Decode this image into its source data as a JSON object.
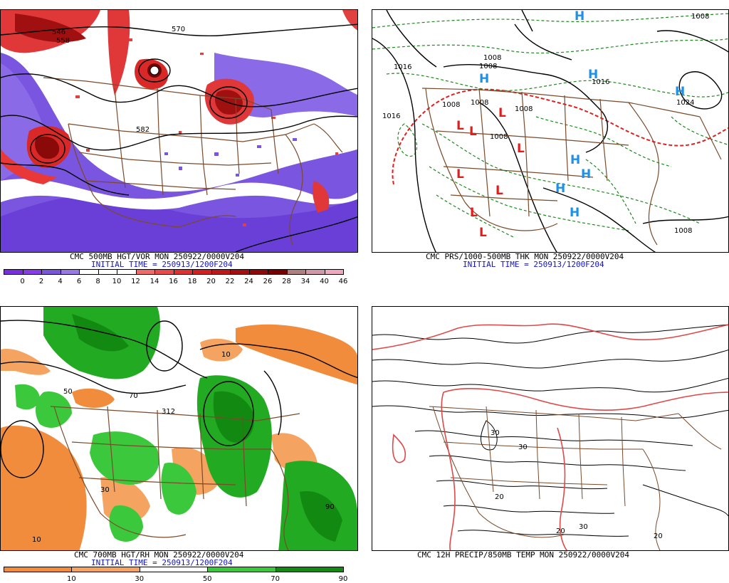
{
  "panels": {
    "tl": {
      "title": "CMC 500MB HGT/VOR MON 250922/0000V204",
      "init": "INITIAL TIME = 250913/1200F204",
      "contour_labels": [
        "546",
        "558",
        "570",
        "582"
      ],
      "scale_labels": [
        "0",
        "2",
        "4",
        "6",
        "8",
        "10",
        "12",
        "14",
        "16",
        "18",
        "20",
        "22",
        "24",
        "26",
        "28",
        "34",
        "40",
        "46"
      ],
      "scale_colors": [
        "#7a2ee0",
        "#8a3ae8",
        "#7b55dc",
        "#9a78e6",
        "#ffffff",
        "#ffffff",
        "#ffffff",
        "#f06a6a",
        "#ea4a4a",
        "#e03030",
        "#d42020",
        "#c01818",
        "#a81010",
        "#900808",
        "#7a0000",
        "#b08080",
        "#d098a8",
        "#f0a8c0"
      ]
    },
    "tr": {
      "title": "CMC PRS/1000-500MB THK MON 250922/0000V204",
      "init": "INITIAL TIME = 250913/1200F204",
      "high_label": "H",
      "low_label": "L",
      "contour_labels": [
        "1016",
        "1016",
        "1008",
        "1008",
        "1008",
        "1008",
        "1008",
        "1008",
        "1016",
        "1024",
        "1008",
        "1008"
      ]
    },
    "bl": {
      "title": "CMC 700MB HGT/RH MON 250922/0000V204",
      "init": "INITIAL TIME = 250913/1200F204",
      "contour_labels": [
        "10",
        "30",
        "50",
        "70",
        "90",
        "312",
        "10"
      ],
      "scale_labels": [
        "10",
        "30",
        "50",
        "70",
        "90"
      ],
      "scale_colors": [
        "#f08c3c",
        "#f4a460",
        "#ffffff",
        "#3cc83c",
        "#128a12"
      ]
    },
    "br": {
      "title": "CMC 12H PRECIP/850MB TEMP MON 250922/0000V204",
      "contour_labels": [
        "30",
        "30",
        "20",
        "20",
        "30",
        "20"
      ]
    }
  },
  "colors": {
    "border": "#7a4a2a",
    "high": "#1e90e6",
    "low": "#e21b1b",
    "init_text": "#1414c8",
    "rh_dry": "#f08c3c",
    "rh_moist": "#22aa22",
    "vort_high": "#e02828",
    "vort_low": "#7a4fe0"
  }
}
